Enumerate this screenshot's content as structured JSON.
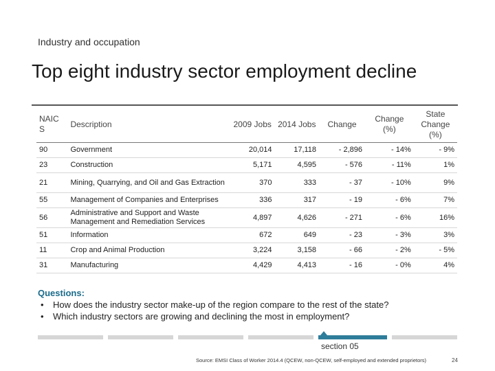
{
  "header": {
    "subtitle": "Industry and occupation",
    "title": "Top eight industry sector employment decline"
  },
  "table": {
    "columns": {
      "naics": "NAIC S",
      "description": "Description",
      "y2009": "2009 Jobs",
      "y2014": "2014 Jobs",
      "change": "Change",
      "change_pct": "Change (%)",
      "state_change": "State Change (%)"
    },
    "rows": [
      {
        "naics": "90",
        "description": "Government",
        "y2009": "20,014",
        "y2014": "17,118",
        "change": "- 2,896",
        "change_pct": "- 14%",
        "state_change": "- 9%"
      },
      {
        "naics": "23",
        "description": "Construction",
        "y2009": "5,171",
        "y2014": "4,595",
        "change": "- 576",
        "change_pct": "- 11%",
        "state_change": "1%"
      },
      {
        "naics": "21",
        "description": "Mining, Quarrying, and Oil and Gas Extraction",
        "y2009": "370",
        "y2014": "333",
        "change": "- 37",
        "change_pct": "- 10%",
        "state_change": "9%"
      },
      {
        "naics": "55",
        "description": "Management of Companies and Enterprises",
        "y2009": "336",
        "y2014": "317",
        "change": "- 19",
        "change_pct": "- 6%",
        "state_change": "7%"
      },
      {
        "naics": "56",
        "description": "Administrative and Support and Waste Management and Remediation Services",
        "y2009": "4,897",
        "y2014": "4,626",
        "change": "- 271",
        "change_pct": "- 6%",
        "state_change": "16%"
      },
      {
        "naics": "51",
        "description": "Information",
        "y2009": "672",
        "y2014": "649",
        "change": "- 23",
        "change_pct": "- 3%",
        "state_change": "3%"
      },
      {
        "naics": "11",
        "description": "Crop and Animal Production",
        "y2009": "3,224",
        "y2014": "3,158",
        "change": "- 66",
        "change_pct": "- 2%",
        "state_change": "- 5%"
      },
      {
        "naics": "31",
        "description": "Manufacturing",
        "y2009": "4,429",
        "y2014": "4,413",
        "change": "- 16",
        "change_pct": "- 0%",
        "state_change": "4%"
      }
    ]
  },
  "questions": {
    "heading": "Questions:",
    "items": [
      "How does the industry sector make-up of the region compare to the rest of the state?",
      "Which industry sectors are growing and declining the most in employment?"
    ]
  },
  "footer": {
    "section_label": "section 05",
    "source": "Source: EMSI Class of Worker 2014.4 (QCEW, non-QCEW, self-employed and extended proprietors)",
    "page_number": "24",
    "accent_color": "#2e7d9a",
    "inactive_color": "#d6d6d6"
  }
}
